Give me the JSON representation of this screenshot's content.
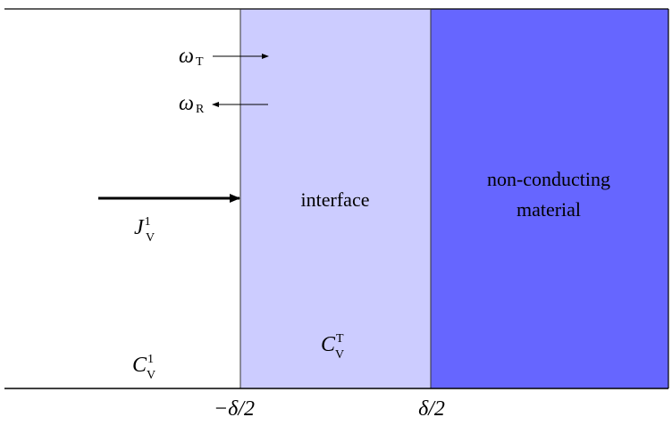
{
  "regions": [
    {
      "label": "interface"
    },
    {
      "label_lines": [
        "non-conducting",
        "material"
      ]
    }
  ],
  "axis_labels": [
    "−δ/2",
    "δ/2"
  ],
  "symbols": [
    {
      "base": "ω",
      "sub": "T"
    },
    {
      "base": "ω",
      "sub": "R"
    },
    {
      "base": "J",
      "sup": "1",
      "sub": "V"
    },
    {
      "base": "C",
      "sup": "1",
      "sub": "V"
    },
    {
      "base": "C",
      "sup": "T",
      "sub": "V"
    }
  ]
}
